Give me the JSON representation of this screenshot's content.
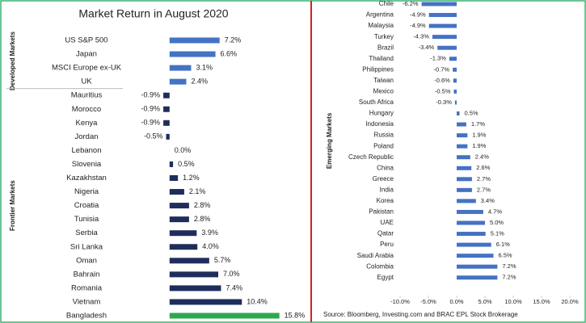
{
  "chart_data": [
    {
      "type": "bar",
      "title": "Market Return in August 2020",
      "xlim": [
        -3,
        16
      ],
      "groups": [
        {
          "name": "Developed Markets",
          "color": "#4472c4",
          "categories": [
            "US S&P 500",
            "Japan",
            "MSCI Europe ex-UK",
            "UK"
          ],
          "values": [
            7.2,
            6.6,
            3.1,
            2.4
          ],
          "value_labels": [
            "7.2%",
            "6.6%",
            "3.1%",
            "2.4%"
          ]
        },
        {
          "name": "Frontier Markets",
          "color": "#1f2d5c",
          "categories": [
            "Mauritius",
            "Morocco",
            "Kenya",
            "Jordan",
            "Lebanon",
            "Slovenia",
            "Kazakhstan",
            "Nigeria",
            "Croatia",
            "Tunisia",
            "Serbia",
            "Sri Lanka",
            "Oman",
            "Bahrain",
            "Romania",
            "Vietnam",
            "Bangladesh"
          ],
          "values": [
            -0.9,
            -0.9,
            -0.9,
            -0.5,
            0.0,
            0.5,
            1.2,
            2.1,
            2.8,
            2.8,
            3.9,
            4.0,
            5.7,
            7.0,
            7.4,
            10.4,
            15.8
          ],
          "value_labels": [
            "-0.9%",
            "-0.9%",
            "-0.9%",
            "-0.5%",
            "0.0%",
            "0.5%",
            "1.2%",
            "2.1%",
            "2.8%",
            "2.8%",
            "3.9%",
            "4.0%",
            "5.7%",
            "7.0%",
            "7.4%",
            "10.4%",
            "15.8%"
          ],
          "colors": [
            "#1f2d5c",
            "#1f2d5c",
            "#1f2d5c",
            "#1f2d5c",
            "#1f2d5c",
            "#1f2d5c",
            "#1f2d5c",
            "#1f2d5c",
            "#1f2d5c",
            "#1f2d5c",
            "#1f2d5c",
            "#1f2d5c",
            "#1f2d5c",
            "#1f2d5c",
            "#1f2d5c",
            "#1f2d5c",
            "#2ea84f"
          ]
        }
      ]
    },
    {
      "type": "bar",
      "xlim": [
        -10,
        20
      ],
      "xticks": [
        {
          "value": -10,
          "label": "-10.0%"
        },
        {
          "value": -5,
          "label": "-5.0%"
        },
        {
          "value": 0,
          "label": "0.0%"
        },
        {
          "value": 5,
          "label": "5.0%"
        },
        {
          "value": 10,
          "label": "10.0%"
        },
        {
          "value": 15,
          "label": "15.0%"
        },
        {
          "value": 20,
          "label": "20.0%"
        }
      ],
      "source": "Source: Bloomberg, Investing.com and BRAC EPL Stock Brokerage",
      "groups": [
        {
          "name": "Emerging Markets",
          "color": "#4472c4",
          "categories": [
            "Chile",
            "Argentina",
            "Malaysia",
            "Turkey",
            "Brazil",
            "Thailand",
            "Philippines",
            "Taiwan",
            "Mexico",
            "South Africa",
            "Hungary",
            "Indonesia",
            "Russia",
            "Poland",
            "Czech Republic",
            "China",
            "Greece",
            "India",
            "Korea",
            "Pakistan",
            "UAE",
            "Qatar",
            "Peru",
            "Saudi Arabia",
            "Colombia",
            "Egypt"
          ],
          "values": [
            -6.2,
            -4.9,
            -4.9,
            -4.3,
            -3.4,
            -1.3,
            -0.7,
            -0.6,
            -0.5,
            -0.3,
            0.5,
            1.7,
            1.9,
            1.9,
            2.4,
            2.6,
            2.7,
            2.7,
            3.4,
            4.7,
            5.0,
            5.1,
            6.1,
            6.5,
            7.2,
            7.2
          ],
          "value_labels": [
            "-6.2%",
            "-4.9%",
            "-4.9%",
            "-4.3%",
            "-3.4%",
            "-1.3%",
            "-0.7%",
            "-0.6%",
            "-0.5%",
            "-0.3%",
            "0.5%",
            "1.7%",
            "1.9%",
            "1.9%",
            "2.4%",
            "2.6%",
            "2.7%",
            "2.7%",
            "3.4%",
            "4.7%",
            "5.0%",
            "5.1%",
            "6.1%",
            "6.5%",
            "7.2%",
            "7.2%"
          ]
        }
      ]
    }
  ]
}
